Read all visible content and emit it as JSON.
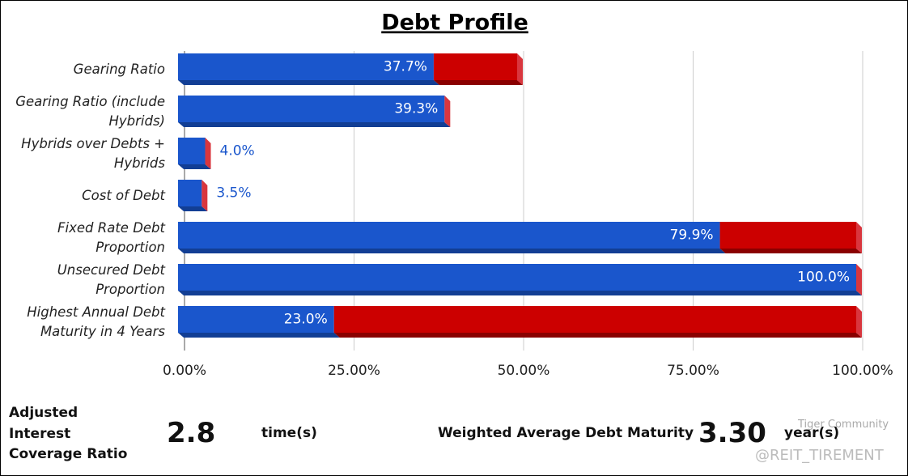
{
  "chart_data": {
    "type": "stacked-bar-horizontal",
    "title": "Debt Profile",
    "categories": [
      "Gearing Ratio",
      "Gearing Ratio (include Hybrids)",
      "Hybrids over Debts + Hybrids",
      "Cost of Debt",
      "Fixed Rate Debt Proportion",
      "Unsecured Debt Proportion",
      "Highest Annual Debt Maturity in 4 Years"
    ],
    "series": [
      {
        "color": "#1a56cc",
        "values": [
          37.7,
          39.3,
          4.0,
          3.5,
          79.9,
          100.0,
          23.0
        ],
        "value_labels": [
          "37.7%",
          "39.3%",
          "4.0%",
          "3.5%",
          "79.9%",
          "100.0%",
          "23.0%"
        ]
      },
      {
        "color": "#cc0000",
        "values": [
          12.3,
          0,
          0,
          0,
          20.1,
          0,
          77.0
        ]
      }
    ],
    "xlim": [
      0,
      100
    ],
    "xticks": [
      {
        "value": 0,
        "label": "0.00%"
      },
      {
        "value": 25,
        "label": "25.00%"
      },
      {
        "value": 50,
        "label": "50.00%"
      },
      {
        "value": 75,
        "label": "75.00%"
      },
      {
        "value": 100,
        "label": "100.00%"
      }
    ],
    "grid": true
  },
  "summary": {
    "coverage_label": "Adjusted Interest Coverage Ratio",
    "coverage_value": "2.8",
    "coverage_unit": "time(s)",
    "maturity_label": "Weighted Average Debt Maturity",
    "maturity_value": "3.30",
    "maturity_unit": "year(s)"
  },
  "watermark": {
    "brand": "Tiger Community",
    "handle": "@REIT_TIREMENT"
  }
}
